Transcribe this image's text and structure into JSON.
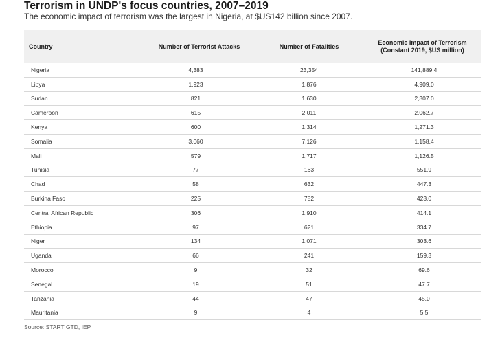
{
  "title": "Terrorism in UNDP's focus countries, 2007–2019",
  "subtitle": "The economic impact of terrorism was the largest in Nigeria, at $US142 billion since 2007.",
  "table": {
    "headers": {
      "country": "Country",
      "attacks": "Number of Terrorist Attacks",
      "fatalities": "Number of Fatalities",
      "impact_line1": "Economic Impact of Terrorism",
      "impact_line2": "(Constant 2019, $US million)"
    },
    "rows": [
      {
        "country": "Nigeria",
        "attacks": "4,383",
        "fatalities": "23,354",
        "impact": "141,889.4"
      },
      {
        "country": "Libya",
        "attacks": "1,923",
        "fatalities": "1,876",
        "impact": "4,909.0"
      },
      {
        "country": "Sudan",
        "attacks": "821",
        "fatalities": "1,630",
        "impact": "2,307.0"
      },
      {
        "country": "Cameroon",
        "attacks": "615",
        "fatalities": "2,011",
        "impact": "2,062.7"
      },
      {
        "country": "Kenya",
        "attacks": "600",
        "fatalities": "1,314",
        "impact": "1,271.3"
      },
      {
        "country": "Somalia",
        "attacks": "3,060",
        "fatalities": "7,126",
        "impact": "1,158.4"
      },
      {
        "country": "Mali",
        "attacks": "579",
        "fatalities": "1,717",
        "impact": "1,126.5"
      },
      {
        "country": "Tunisia",
        "attacks": "77",
        "fatalities": "163",
        "impact": "551.9"
      },
      {
        "country": "Chad",
        "attacks": "58",
        "fatalities": "632",
        "impact": "447.3"
      },
      {
        "country": "Burkina Faso",
        "attacks": "225",
        "fatalities": "782",
        "impact": "423.0"
      },
      {
        "country": "Central African Republic",
        "attacks": "306",
        "fatalities": "1,910",
        "impact": "414.1"
      },
      {
        "country": "Ethiopia",
        "attacks": "97",
        "fatalities": "621",
        "impact": "334.7"
      },
      {
        "country": "Niger",
        "attacks": "134",
        "fatalities": "1,071",
        "impact": "303.6"
      },
      {
        "country": "Uganda",
        "attacks": "66",
        "fatalities": "241",
        "impact": "159.3"
      },
      {
        "country": "Morocco",
        "attacks": "9",
        "fatalities": "32",
        "impact": "69.6"
      },
      {
        "country": "Senegal",
        "attacks": "19",
        "fatalities": "51",
        "impact": "47.7"
      },
      {
        "country": "Tanzania",
        "attacks": "44",
        "fatalities": "47",
        "impact": "45.0"
      },
      {
        "country": "Mauritania",
        "attacks": "9",
        "fatalities": "4",
        "impact": "5.5"
      }
    ]
  },
  "source": "Source: START GTD, IEP"
}
